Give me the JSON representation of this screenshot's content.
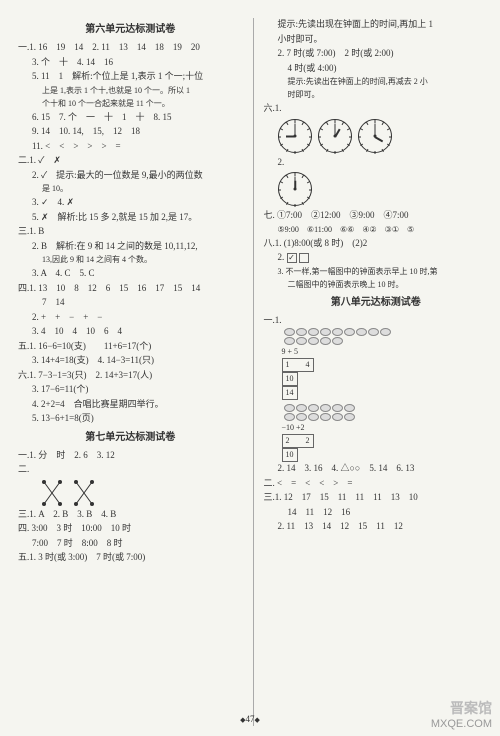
{
  "left": {
    "unit6_title": "第六单元达标测试卷",
    "s1_1": "一.1. 16　19　14　2. 11　13　14　18　19　20",
    "s1_3": "3. 个　十　4. 14　16",
    "s1_5": "5. 11　1　解析:个位上是 1,表示 1 个一;十位",
    "s1_5b": "上是 1,表示 1 个十,也就是 10 个一。所以 1",
    "s1_5c": "个十和 10 个一合起来就是 11 个一。",
    "s1_6": "6. 15　7. 个　一　十　1　十　8. 15",
    "s1_9": "9. 14　10. 14,　15,　12　18",
    "s1_11": "11. <　<　>　>　>　=",
    "s2_1": "二.1. ✓　✗",
    "s2_2": "2. ✓　提示:最大的一位数是 9,最小的两位数",
    "s2_2b": "是 10。",
    "s2_3": "3. ✓　4. ✗",
    "s2_5": "5. ✗　解析:比 15 多 2,就是 15 加 2,是 17。",
    "s3_1": "三.1. B",
    "s3_2": "2. B　解析:在 9 和 14 之间的数是 10,11,12,",
    "s3_2b": "13,因此 9 和 14 之间有 4 个数。",
    "s3_3": "3. A　4. C　5. C",
    "s4_1": "四.1. 13　10　8　12　6　15　16　17　15　14",
    "s4_1b": "7　14",
    "s4_2": "2. +　+　−　+　−",
    "s4_3": "3. 4　10　4　10　6　4",
    "s5_1": "五.1. 16−6=10(支)　　11+6=17(个)",
    "s5_3": "3. 14+4=18(支)　4. 14−3=11(只)",
    "s6_1": "六.1. 7−3−1=3(只)　2. 14+3=17(人)",
    "s6_3": "3. 17−6=11(个)",
    "s6_4": "4. 2+2=4　合唱比赛星期四举行。",
    "s6_5": "5. 13−6+1=8(页)",
    "unit7_title": "第七单元达标测试卷",
    "u7_1": "一.1. 分　时　2. 6　3. 12",
    "u7_2": "二.",
    "u7_3": "三.1. A　2. B　3. B　4. B",
    "u7_4": "四. 3:00　3 时　10:00　10 时",
    "u7_4b": "7:00　7 时　8:00　8 时",
    "u7_5": "五.1. 3 时(或 3:00)　7 时(或 7:00)"
  },
  "right": {
    "r1": "提示:先读出现在钟面上的时间,再加上 1",
    "r1b": "小时即可。",
    "r2": "2. 7 时(或 7:00)　2 时(或 2:00)",
    "r2b": "4 时(或 4:00)",
    "r2c": "提示:先读出在钟面上的时间,再减去 2 小",
    "r2d": "时即可。",
    "r6": "六.1.",
    "r6_2": "2.",
    "r7": "七. ①7:00　②12:00　③9:00　④7:00",
    "r7b": "⑤9:00　⑥11:00　⑥⑥　④②　③①　⑤",
    "r8": "八.1. (1)8:00(或 8 时)　(2)2",
    "r8_2": "2.",
    "r8_3": "3. 不一样,第一幅图中的钟面表示早上 10 时,第",
    "r8_3b": "二幅图中的钟面表示晚上 10 时。",
    "unit8_title": "第八单元达标测试卷",
    "u8_1": "一.1.",
    "u8_flow1a": "9 + 5",
    "u8_flow1b": "1　　4",
    "u8_flow1c": "10",
    "u8_flow1d": "14",
    "u8_flow2a": "−10 +2",
    "u8_flow2b": "2　　2",
    "u8_flow2c": "10",
    "u8_2": "2. 14　3. 16　4. △○○　5. 14　6. 13",
    "u8_sec2": "二. <　=　<　<　>　=",
    "u8_sec3_1": "三.1. 12　17　15　11　11　11　13　10",
    "u8_sec3_1b": "14　11　12　16",
    "u8_sec3_2": "2. 11　13　14　12　15　11　12"
  },
  "pagenum": "47",
  "watermark_cn": "晋案馆",
  "watermark_en": "MXQE.COM",
  "clocks": [
    {
      "hour_deg": -180,
      "min_deg": -90
    },
    {
      "hour_deg": -60,
      "min_deg": -90
    },
    {
      "hour_deg": 30,
      "min_deg": -90
    },
    {
      "hour_deg": -90,
      "min_deg": -90
    }
  ]
}
